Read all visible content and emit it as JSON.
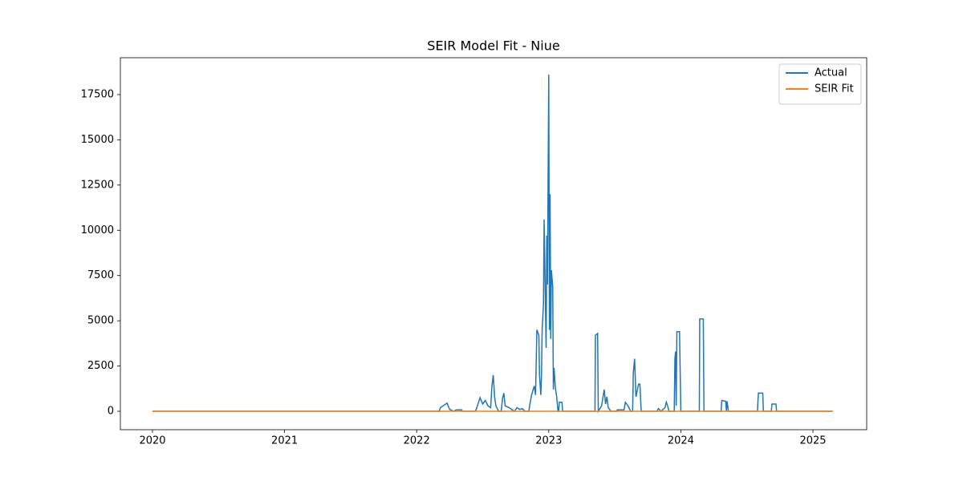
{
  "chart_data": {
    "type": "line",
    "title": "SEIR Model Fit - Niue",
    "xlim": [
      2019.757,
      2025.407
    ],
    "xticks": [
      2020,
      2021,
      2022,
      2023,
      2024,
      2025
    ],
    "ylim": [
      -1019,
      19538
    ],
    "yticks": [
      0,
      2500,
      5000,
      7500,
      10000,
      12500,
      15000,
      17500
    ],
    "legend": "upper right",
    "grid": false,
    "series": [
      {
        "name": "Actual",
        "color": "#1f77b4",
        "x": [
          2020,
          2022.17,
          2022.18,
          2022.23,
          2022.25,
          2022.28,
          2022.3,
          2022.34,
          2022.35,
          2022.44,
          2022.45,
          2022.48,
          2022.5,
          2022.52,
          2022.54,
          2022.56,
          2022.57,
          2022.58,
          2022.59,
          2022.6,
          2022.62,
          2022.64,
          2022.65,
          2022.66,
          2022.67,
          2022.7,
          2022.72,
          2022.74,
          2022.76,
          2022.78,
          2022.8,
          2022.82,
          2022.85,
          2022.855,
          2022.87,
          2022.89,
          2022.9,
          2022.91,
          2022.925,
          2022.93,
          2022.94,
          2022.945,
          2022.95,
          2022.96,
          2022.965,
          2022.98,
          2022.985,
          2022.99,
          2023.0,
          2023.005,
          2023.01,
          2023.015,
          2023.02,
          2023.03,
          2023.035,
          2023.04,
          2023.05,
          2023.06,
          2023.07,
          2023.075,
          2023.08,
          2023.1,
          2023.105,
          2023.35,
          2023.353,
          2023.37,
          2023.375,
          2023.4,
          2023.42,
          2023.43,
          2023.44,
          2023.45,
          2023.47,
          2023.51,
          2023.52,
          2023.57,
          2023.58,
          2023.6,
          2023.62,
          2023.635,
          2023.64,
          2023.65,
          2023.66,
          2023.68,
          2023.69,
          2023.7,
          2023.82,
          2023.83,
          2023.85,
          2023.88,
          2023.89,
          2023.9,
          2023.91,
          2023.95,
          2023.955,
          2023.96,
          2023.965,
          2023.97,
          2023.99,
          2024.0,
          2024.14,
          2024.143,
          2024.17,
          2024.175,
          2024.305,
          2024.31,
          2024.34,
          2024.345,
          2024.35,
          2024.36,
          2024.58,
          2024.587,
          2024.62,
          2024.625,
          2024.685,
          2024.69,
          2024.72,
          2024.725,
          2025.15
        ],
        "values": [
          0,
          0,
          200,
          450,
          100,
          0,
          80,
          80,
          0,
          0,
          80,
          750,
          400,
          600,
          300,
          200,
          1400,
          2000,
          800,
          300,
          0,
          0,
          700,
          1000,
          300,
          200,
          100,
          0,
          200,
          100,
          150,
          0,
          0,
          300,
          900,
          1400,
          900,
          4500,
          4200,
          2000,
          900,
          2000,
          4500,
          5900,
          10600,
          3500,
          9700,
          7000,
          18600,
          4500,
          12000,
          4000,
          7800,
          6900,
          1200,
          2400,
          1300,
          800,
          0,
          0,
          500,
          500,
          0,
          0,
          4200,
          4300,
          0,
          300,
          1200,
          400,
          800,
          200,
          0,
          0,
          80,
          80,
          500,
          300,
          0,
          0,
          2100,
          2900,
          800,
          1500,
          1500,
          0,
          0,
          150,
          0,
          200,
          500,
          300,
          0,
          0,
          2900,
          3300,
          300,
          4400,
          4400,
          0,
          0,
          5100,
          5100,
          0,
          0,
          600,
          550,
          0,
          550,
          0,
          0,
          1000,
          1000,
          0,
          0,
          400,
          400,
          0,
          0
        ]
      },
      {
        "name": "SEIR Fit",
        "color": "#ff7f0e",
        "x": [
          2020,
          2025.15
        ],
        "values": [
          0,
          0
        ]
      }
    ]
  }
}
